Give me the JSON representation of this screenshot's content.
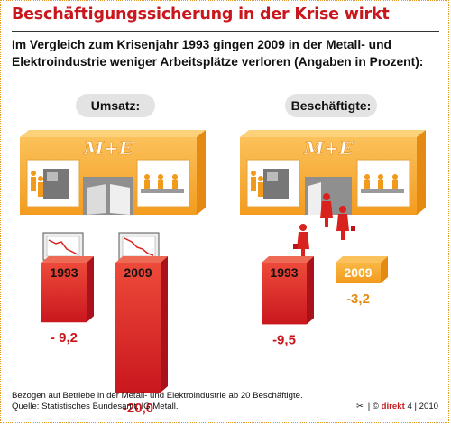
{
  "title": "Beschäftigungssicherung in der Krise wirkt",
  "subtitle": "Im Vergleich zum Krisenjahr 1993 gingen 2009 in der Metall- und Elektroindustrie weniger Arbeitsplätze verloren (Angaben in Prozent):",
  "logo_text": "M+E",
  "footnote": {
    "line1": "Bezogen auf Betriebe in der Metall- und Elektroindustrie ab 20 Beschäftigte.",
    "line2": "Quelle: Statistisches Bundesamt, IG Metall."
  },
  "credit": {
    "scissor": "✂",
    "separator": "|",
    "copyright": "©",
    "brand": "direkt",
    "issue": "4",
    "year": "2010"
  },
  "colors": {
    "red": "#d9221d",
    "red_light": "#ee6a55",
    "orange": "#f6a623",
    "orange_light": "#fbc15a",
    "text_red": "#c9171e"
  },
  "chart_data": [
    {
      "type": "bar",
      "title": "Umsatz:",
      "categories": [
        "1993",
        "2009"
      ],
      "values": [
        -9.2,
        -20.0
      ],
      "value_labels": [
        "- 9,2",
        "-20,0"
      ]
    },
    {
      "type": "bar",
      "title": "Beschäftigte:",
      "categories": [
        "1993",
        "2009"
      ],
      "values": [
        -9.5,
        -3.2
      ],
      "value_labels": [
        "-9,5",
        "-3,2"
      ]
    }
  ]
}
